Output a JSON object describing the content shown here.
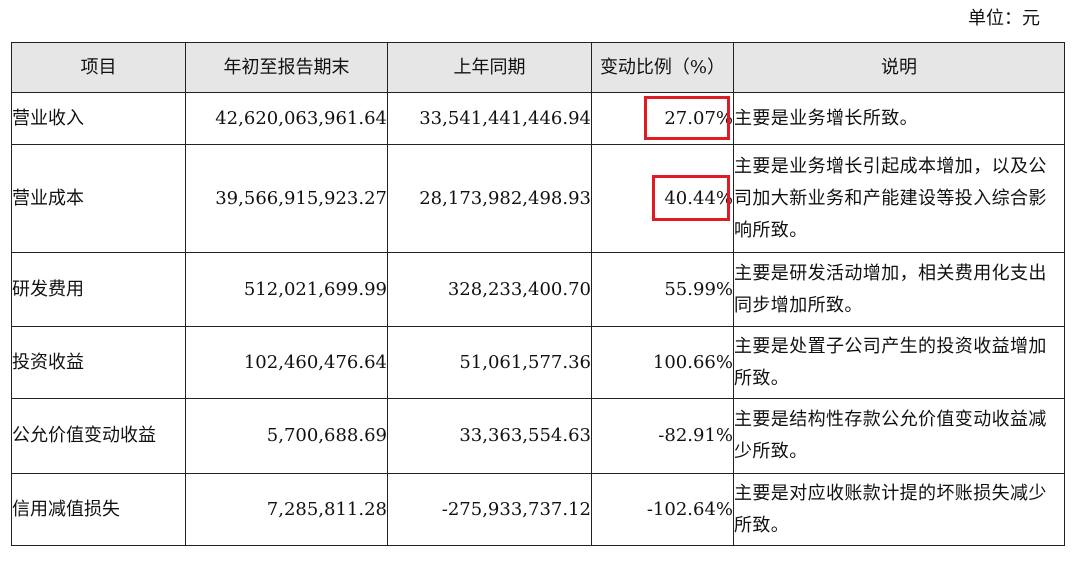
{
  "unit_label": "单位：元",
  "table": {
    "headers": [
      "项目",
      "年初至报告期末",
      "上年同期",
      "变动比例（%）",
      "说明"
    ],
    "rows": [
      {
        "item": "营业收入",
        "current": "42,620,063,961.64",
        "prior": "33,541,441,446.94",
        "change": "27.07%",
        "note": "主要是业务增长所致。",
        "highlighted": true
      },
      {
        "item": "营业成本",
        "current": "39,566,915,923.27",
        "prior": "28,173,982,498.93",
        "change": "40.44%",
        "note": "主要是业务增长引起成本增加，以及公司加大新业务和产能建设等投入综合影响所致。",
        "highlighted": true
      },
      {
        "item": "研发费用",
        "current": "512,021,699.99",
        "prior": "328,233,400.70",
        "change": "55.99%",
        "note": "主要是研发活动增加，相关费用化支出同步增加所致。",
        "highlighted": false
      },
      {
        "item": "投资收益",
        "current": "102,460,476.64",
        "prior": "51,061,577.36",
        "change": "100.66%",
        "note": "主要是处置子公司产生的投资收益增加所致。",
        "highlighted": false
      },
      {
        "item": "公允价值变动收益",
        "current": "5,700,688.69",
        "prior": "33,363,554.63",
        "change": "-82.91%",
        "note": "主要是结构性存款公允价值变动收益减少所致。",
        "highlighted": false
      },
      {
        "item": "信用减值损失",
        "current": "7,285,811.28",
        "prior": "-275,933,737.12",
        "change": "-102.64%",
        "note": "主要是对应收账款计提的坏账损失减少所致。",
        "highlighted": false
      }
    ]
  },
  "highlight_color": "#e01b24"
}
